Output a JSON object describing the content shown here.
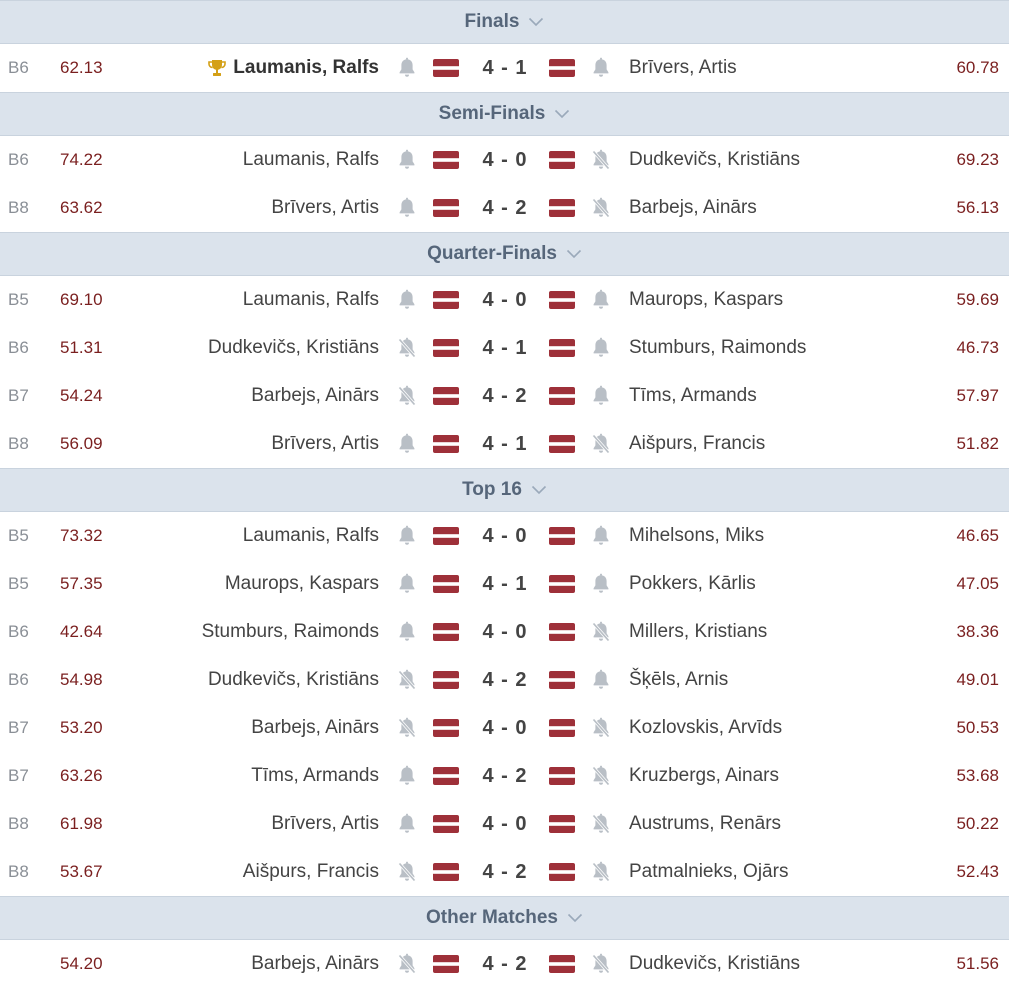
{
  "colors": {
    "header_bg": "#dbe3ec",
    "header_text": "#56667a",
    "average": "#7a1f1f",
    "flag_red": "#9e3039",
    "bell_gray": "#b9bfc6",
    "trophy": "#d4a017"
  },
  "sections": [
    {
      "title": "Finals",
      "matches": [
        {
          "board": "B6",
          "avg_left": "62.13",
          "player_left": "Laumanis, Ralfs",
          "winner": true,
          "trophy": true,
          "bell_left": "on",
          "score": "4 - 1",
          "bell_right": "on",
          "player_right": "Brīvers, Artis",
          "avg_right": "60.78"
        }
      ]
    },
    {
      "title": "Semi-Finals",
      "matches": [
        {
          "board": "B6",
          "avg_left": "74.22",
          "player_left": "Laumanis, Ralfs",
          "bell_left": "on",
          "score": "4 - 0",
          "bell_right": "off",
          "player_right": "Dudkevičs, Kristiāns",
          "avg_right": "69.23"
        },
        {
          "board": "B8",
          "avg_left": "63.62",
          "player_left": "Brīvers, Artis",
          "bell_left": "on",
          "score": "4 - 2",
          "bell_right": "off",
          "player_right": "Barbejs, Ainārs",
          "avg_right": "56.13"
        }
      ]
    },
    {
      "title": "Quarter-Finals",
      "matches": [
        {
          "board": "B5",
          "avg_left": "69.10",
          "player_left": "Laumanis, Ralfs",
          "bell_left": "on",
          "score": "4 - 0",
          "bell_right": "on",
          "player_right": "Maurops, Kaspars",
          "avg_right": "59.69"
        },
        {
          "board": "B6",
          "avg_left": "51.31",
          "player_left": "Dudkevičs, Kristiāns",
          "bell_left": "off",
          "score": "4 - 1",
          "bell_right": "on",
          "player_right": "Stumburs, Raimonds",
          "avg_right": "46.73"
        },
        {
          "board": "B7",
          "avg_left": "54.24",
          "player_left": "Barbejs, Ainārs",
          "bell_left": "off",
          "score": "4 - 2",
          "bell_right": "on",
          "player_right": "Tīms, Armands",
          "avg_right": "57.97"
        },
        {
          "board": "B8",
          "avg_left": "56.09",
          "player_left": "Brīvers, Artis",
          "bell_left": "on",
          "score": "4 - 1",
          "bell_right": "off",
          "player_right": "Aišpurs, Francis",
          "avg_right": "51.82"
        }
      ]
    },
    {
      "title": "Top 16",
      "matches": [
        {
          "board": "B5",
          "avg_left": "73.32",
          "player_left": "Laumanis, Ralfs",
          "bell_left": "on",
          "score": "4 - 0",
          "bell_right": "on",
          "player_right": "Mihelsons, Miks",
          "avg_right": "46.65"
        },
        {
          "board": "B5",
          "avg_left": "57.35",
          "player_left": "Maurops, Kaspars",
          "bell_left": "on",
          "score": "4 - 1",
          "bell_right": "on",
          "player_right": "Pokkers, Kārlis",
          "avg_right": "47.05"
        },
        {
          "board": "B6",
          "avg_left": "42.64",
          "player_left": "Stumburs, Raimonds",
          "bell_left": "on",
          "score": "4 - 0",
          "bell_right": "off",
          "player_right": "Millers, Kristians",
          "avg_right": "38.36"
        },
        {
          "board": "B6",
          "avg_left": "54.98",
          "player_left": "Dudkevičs, Kristiāns",
          "bell_left": "off",
          "score": "4 - 2",
          "bell_right": "on",
          "player_right": "Šķēls, Arnis",
          "avg_right": "49.01"
        },
        {
          "board": "B7",
          "avg_left": "53.20",
          "player_left": "Barbejs, Ainārs",
          "bell_left": "off",
          "score": "4 - 0",
          "bell_right": "off",
          "player_right": "Kozlovskis, Arvīds",
          "avg_right": "50.53"
        },
        {
          "board": "B7",
          "avg_left": "63.26",
          "player_left": "Tīms, Armands",
          "bell_left": "on",
          "score": "4 - 2",
          "bell_right": "off",
          "player_right": "Kruzbergs, Ainars",
          "avg_right": "53.68"
        },
        {
          "board": "B8",
          "avg_left": "61.98",
          "player_left": "Brīvers, Artis",
          "bell_left": "on",
          "score": "4 - 0",
          "bell_right": "off",
          "player_right": "Austrums, Renārs",
          "avg_right": "50.22"
        },
        {
          "board": "B8",
          "avg_left": "53.67",
          "player_left": "Aišpurs, Francis",
          "bell_left": "off",
          "score": "4 - 2",
          "bell_right": "off",
          "player_right": "Patmalnieks, Ojārs",
          "avg_right": "52.43"
        }
      ]
    },
    {
      "title": "Other Matches",
      "matches": [
        {
          "board": "",
          "avg_left": "54.20",
          "player_left": "Barbejs, Ainārs",
          "bell_left": "off",
          "score": "4 - 2",
          "bell_right": "off",
          "player_right": "Dudkevičs, Kristiāns",
          "avg_right": "51.56"
        }
      ]
    }
  ]
}
